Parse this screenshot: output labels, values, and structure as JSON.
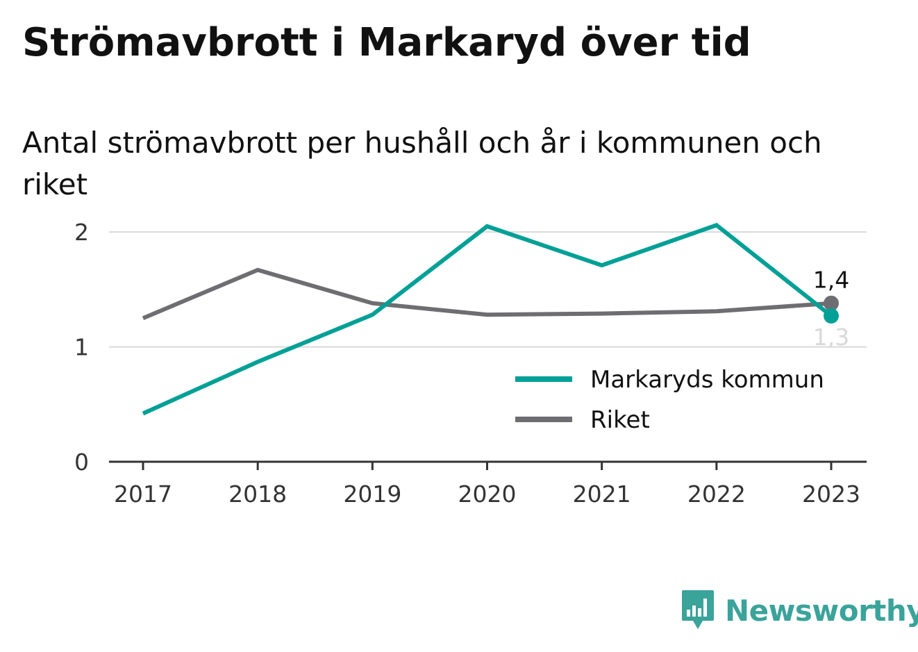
{
  "title": "Strömavbrott i Markaryd över tid",
  "subtitle": "Antal strömavbrott per hushåll och år i kommunen och riket",
  "brand": {
    "name": "Newsworthy",
    "icon": "bar-chart-speech-bubble-icon",
    "color": "#3aa39a"
  },
  "chart_data": {
    "type": "line",
    "title": "Strömavbrott i Markaryd över tid",
    "subtitle": "Antal strömavbrott per hushåll och år i kommunen och riket",
    "xlabel": "",
    "ylabel": "",
    "x": [
      "2017",
      "2018",
      "2019",
      "2020",
      "2021",
      "2022",
      "2023"
    ],
    "ylim": [
      0,
      2.4
    ],
    "yticks": [
      0,
      1,
      2
    ],
    "ytick_labels": [
      "0",
      "1",
      "2"
    ],
    "grid": true,
    "legend_position": "bottom-right",
    "series": [
      {
        "name": "Markaryds kommun",
        "color": "#00a096",
        "values": [
          0.42,
          0.87,
          1.28,
          2.05,
          1.71,
          2.06,
          1.27
        ],
        "end_label": "1,3"
      },
      {
        "name": "Riket",
        "color": "#6e6e72",
        "values": [
          1.25,
          1.67,
          1.38,
          1.28,
          1.29,
          1.31,
          1.38
        ],
        "end_label": "1,4"
      }
    ]
  }
}
